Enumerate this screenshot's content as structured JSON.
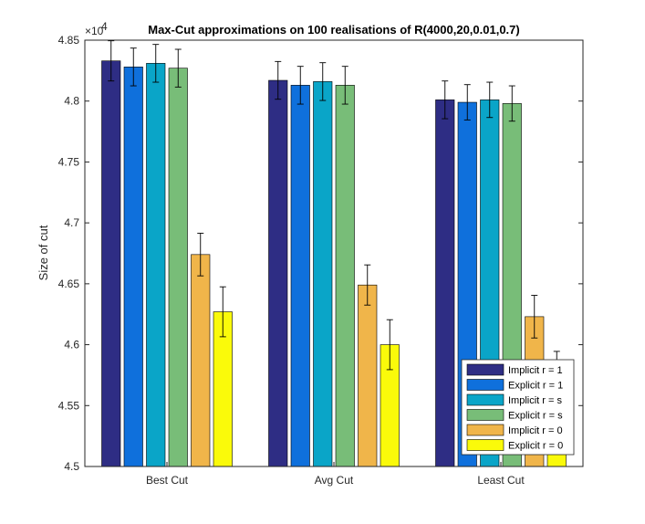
{
  "chart_data": {
    "type": "bar",
    "title": "Max-Cut approximations on 100 realisations of R(4000,20,0.01,0.7)",
    "xlabel": "",
    "ylabel": "Size of cut",
    "exponent_label": "×10",
    "exponent_power": "4",
    "categories": [
      "Best Cut",
      "Avg Cut",
      "Least Cut"
    ],
    "ylim": [
      4.5,
      4.85
    ],
    "yticks": [
      "4.5",
      "4.55",
      "4.6",
      "4.65",
      "4.7",
      "4.75",
      "4.8",
      "4.85"
    ],
    "ytick_values": [
      4.5,
      4.55,
      4.6,
      4.65,
      4.7,
      4.75,
      4.8,
      4.85
    ],
    "grid": false,
    "legend_position": "bottom-right",
    "series": [
      {
        "name": "Implicit r = 1",
        "color": "#2e2d84",
        "values": [
          4.833,
          4.817,
          4.801
        ],
        "errors": [
          0.0165,
          0.0155,
          0.0155
        ]
      },
      {
        "name": "Explicit r = 1",
        "color": "#0f70dc",
        "values": [
          4.828,
          4.813,
          4.799
        ],
        "errors": [
          0.0155,
          0.0155,
          0.0145
        ]
      },
      {
        "name": "Implicit r = s",
        "color": "#0aa5c8",
        "values": [
          4.831,
          4.816,
          4.801
        ],
        "errors": [
          0.0155,
          0.0155,
          0.0145
        ]
      },
      {
        "name": "Explicit r = s",
        "color": "#78bd78",
        "values": [
          4.827,
          4.813,
          4.798
        ],
        "errors": [
          0.0155,
          0.0155,
          0.0145
        ]
      },
      {
        "name": "Implicit r = 0",
        "color": "#f0b54a",
        "values": [
          4.674,
          4.649,
          4.623
        ],
        "errors": [
          0.0175,
          0.0165,
          0.0175
        ]
      },
      {
        "name": "Explicit r = 0",
        "color": "#fafa0a",
        "values": [
          4.627,
          4.6,
          4.572
        ],
        "errors": [
          0.0205,
          0.0205,
          0.0225
        ]
      }
    ]
  }
}
